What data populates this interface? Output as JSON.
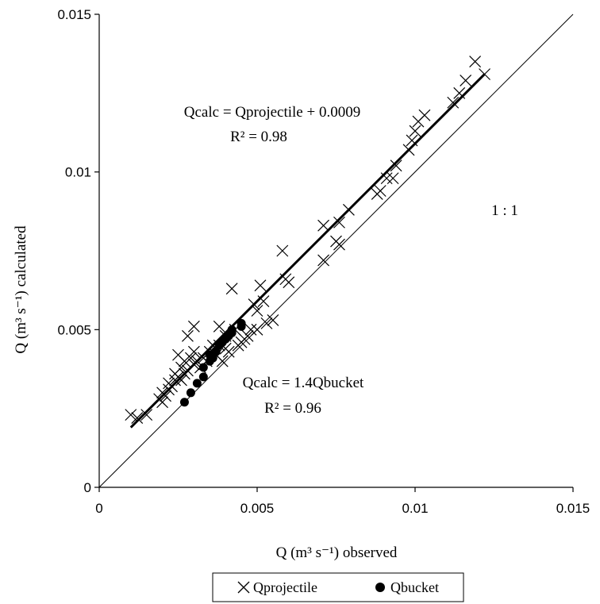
{
  "chart_data": {
    "type": "scatter",
    "xlabel": "Q (m³ s⁻¹) observed",
    "ylabel": "Q (m³ s⁻¹) calculated",
    "xlim": [
      0,
      0.015
    ],
    "ylim": [
      0,
      0.015
    ],
    "x_ticks": [
      "0",
      "0.005",
      "0.01",
      "0.015"
    ],
    "y_ticks": [
      "0",
      "0.005",
      "0.01",
      "0.015"
    ],
    "grid": false,
    "legend_position": "bottom-center",
    "annotations": {
      "projectile_eq": "Qcalc = Qprojectile + 0.0009",
      "projectile_r2": "R² = 0.98",
      "bucket_eq": "Qcalc = 1.4Qbucket",
      "bucket_r2": "R² = 0.96",
      "one_to_one": "1 : 1"
    },
    "series": [
      {
        "name": "Qprojectile",
        "marker": "x",
        "points": [
          [
            0.001,
            0.0023
          ],
          [
            0.0012,
            0.0022
          ],
          [
            0.0015,
            0.0023
          ],
          [
            0.0019,
            0.0028
          ],
          [
            0.002,
            0.003
          ],
          [
            0.002,
            0.0027
          ],
          [
            0.0021,
            0.0029
          ],
          [
            0.0022,
            0.0031
          ],
          [
            0.0022,
            0.0033
          ],
          [
            0.0023,
            0.0032
          ],
          [
            0.0024,
            0.0034
          ],
          [
            0.0024,
            0.0036
          ],
          [
            0.0025,
            0.0035
          ],
          [
            0.0025,
            0.0042
          ],
          [
            0.0026,
            0.0038
          ],
          [
            0.0026,
            0.0034
          ],
          [
            0.0027,
            0.0036
          ],
          [
            0.0027,
            0.004
          ],
          [
            0.0028,
            0.0048
          ],
          [
            0.0028,
            0.0037
          ],
          [
            0.0029,
            0.0041
          ],
          [
            0.003,
            0.0039
          ],
          [
            0.003,
            0.0043
          ],
          [
            0.003,
            0.0051
          ],
          [
            0.0031,
            0.004
          ],
          [
            0.0032,
            0.0038
          ],
          [
            0.0033,
            0.0041
          ],
          [
            0.0034,
            0.004
          ],
          [
            0.0035,
            0.0043
          ],
          [
            0.0036,
            0.0045
          ],
          [
            0.0037,
            0.0042
          ],
          [
            0.0038,
            0.0045
          ],
          [
            0.0038,
            0.0051
          ],
          [
            0.0039,
            0.004
          ],
          [
            0.004,
            0.0044
          ],
          [
            0.004,
            0.0048
          ],
          [
            0.0041,
            0.0043
          ],
          [
            0.0042,
            0.0063
          ],
          [
            0.0043,
            0.005
          ],
          [
            0.0044,
            0.0045
          ],
          [
            0.0045,
            0.0046
          ],
          [
            0.0046,
            0.0047
          ],
          [
            0.0047,
            0.0048
          ],
          [
            0.0048,
            0.005
          ],
          [
            0.0049,
            0.0058
          ],
          [
            0.005,
            0.005
          ],
          [
            0.005,
            0.0056
          ],
          [
            0.0051,
            0.0064
          ],
          [
            0.0052,
            0.0059
          ],
          [
            0.0053,
            0.0052
          ],
          [
            0.0055,
            0.0053
          ],
          [
            0.0058,
            0.0075
          ],
          [
            0.0059,
            0.0066
          ],
          [
            0.006,
            0.0065
          ],
          [
            0.0071,
            0.0072
          ],
          [
            0.0071,
            0.0083
          ],
          [
            0.0075,
            0.0078
          ],
          [
            0.0076,
            0.0077
          ],
          [
            0.0076,
            0.0084
          ],
          [
            0.0079,
            0.0088
          ],
          [
            0.0088,
            0.0093
          ],
          [
            0.0089,
            0.0094
          ],
          [
            0.0091,
            0.0098
          ],
          [
            0.0093,
            0.0098
          ],
          [
            0.0094,
            0.0102
          ],
          [
            0.0098,
            0.0107
          ],
          [
            0.0099,
            0.011
          ],
          [
            0.01,
            0.0113
          ],
          [
            0.0101,
            0.0116
          ],
          [
            0.0103,
            0.0118
          ],
          [
            0.0112,
            0.0122
          ],
          [
            0.0114,
            0.0125
          ],
          [
            0.0116,
            0.0129
          ],
          [
            0.0119,
            0.0135
          ],
          [
            0.0122,
            0.0131
          ]
        ],
        "trendline": [
          [
            0.001,
            0.0019
          ],
          [
            0.0122,
            0.0131
          ]
        ]
      },
      {
        "name": "Qbucket",
        "marker": "dot",
        "points": [
          [
            0.0027,
            0.0027
          ],
          [
            0.0029,
            0.003
          ],
          [
            0.0031,
            0.0033
          ],
          [
            0.0033,
            0.0035
          ],
          [
            0.0033,
            0.0038
          ],
          [
            0.0035,
            0.004
          ],
          [
            0.0035,
            0.0042
          ],
          [
            0.0036,
            0.0041
          ],
          [
            0.0037,
            0.0043
          ],
          [
            0.0038,
            0.0045
          ],
          [
            0.0039,
            0.0046
          ],
          [
            0.004,
            0.0047
          ],
          [
            0.0041,
            0.0048
          ],
          [
            0.0042,
            0.0049
          ],
          [
            0.0042,
            0.005
          ],
          [
            0.0045,
            0.0051
          ],
          [
            0.0045,
            0.0052
          ]
        ]
      }
    ]
  }
}
